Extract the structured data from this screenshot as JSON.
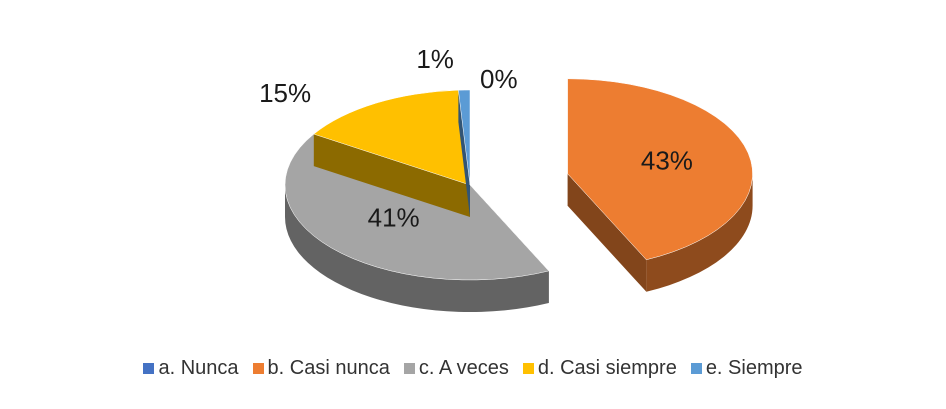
{
  "chart_data": {
    "type": "pie",
    "categories": [
      "a. Nunca",
      "b. Casi nunca",
      "c. A veces",
      "d. Casi siempre",
      "e. Siempre"
    ],
    "values": [
      0,
      43,
      41,
      15,
      1
    ],
    "value_labels": [
      "0%",
      "43%",
      "41%",
      "15%",
      "1%"
    ],
    "colors": [
      "#4472c4",
      "#ed7d31",
      "#a5a5a5",
      "#ffc000",
      "#5b9bd5"
    ]
  }
}
